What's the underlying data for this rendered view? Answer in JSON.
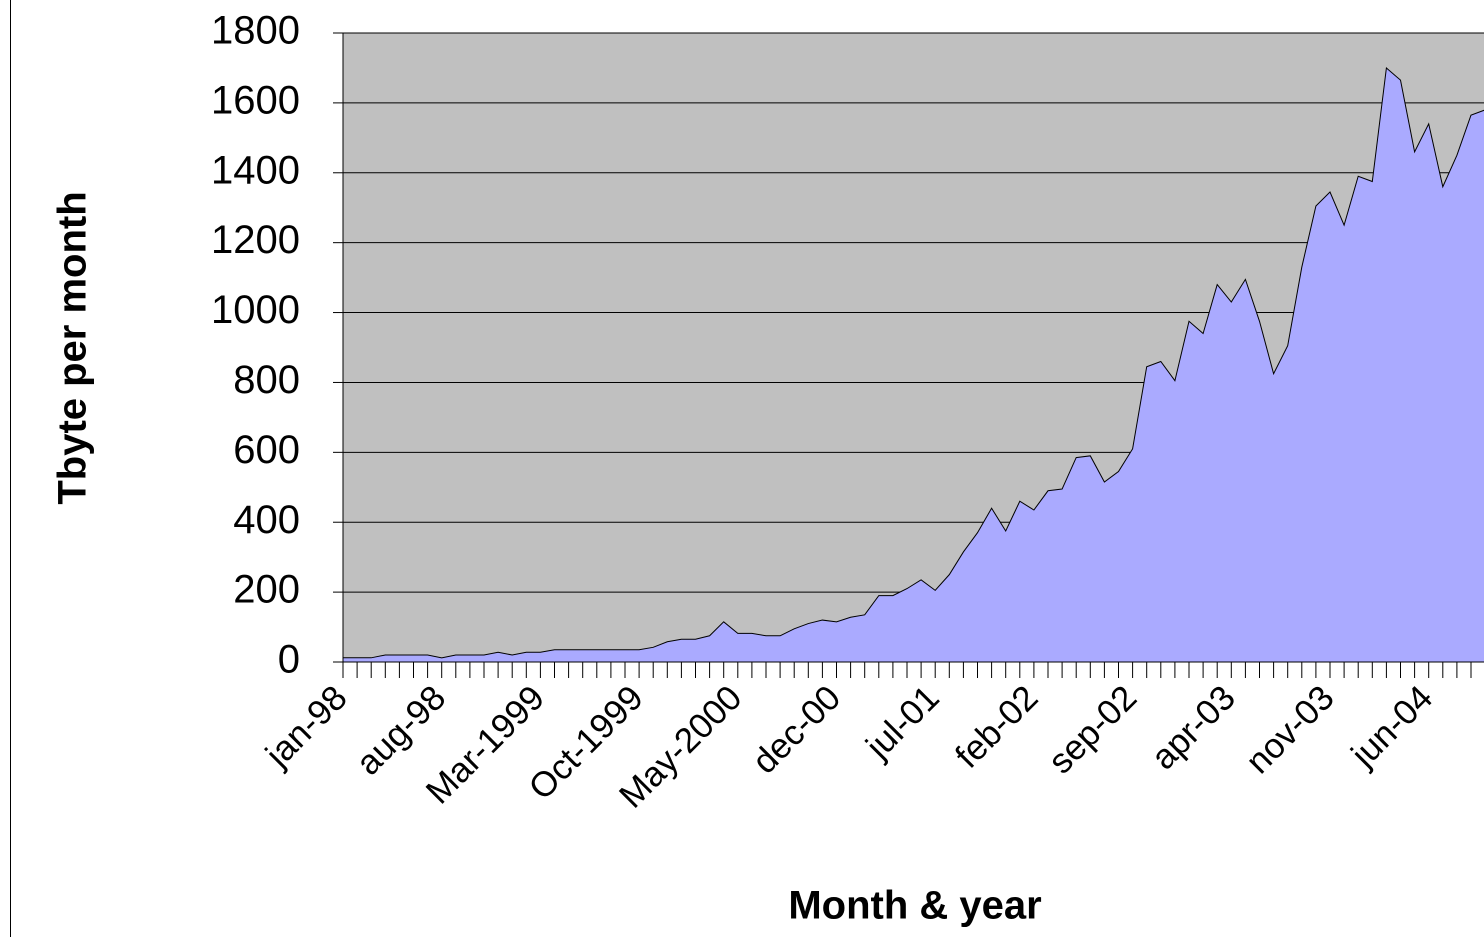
{
  "chart_data": {
    "type": "area",
    "x_label": "Month & year",
    "y_label": "Tbyte per month",
    "categories": [
      "jan-98",
      null,
      null,
      null,
      null,
      null,
      null,
      "aug-98",
      null,
      null,
      null,
      null,
      null,
      null,
      "Mar-1999",
      null,
      null,
      null,
      null,
      null,
      null,
      "Oct-1999",
      null,
      null,
      null,
      null,
      null,
      null,
      "May-2000",
      null,
      null,
      null,
      null,
      null,
      null,
      "dec-00",
      null,
      null,
      null,
      null,
      null,
      null,
      "jul-01",
      null,
      null,
      null,
      null,
      null,
      null,
      "feb-02",
      null,
      null,
      null,
      null,
      null,
      null,
      "sep-02",
      null,
      null,
      null,
      null,
      null,
      null,
      "apr-03",
      null,
      null,
      null,
      null,
      null,
      null,
      "nov-03",
      null,
      null,
      null,
      null,
      null,
      null,
      "jun-04",
      null,
      null,
      null,
      null
    ],
    "values": [
      12,
      12,
      12,
      20,
      20,
      20,
      20,
      12,
      20,
      20,
      20,
      28,
      20,
      28,
      28,
      35,
      35,
      35,
      35,
      35,
      35,
      35,
      42,
      58,
      65,
      65,
      75,
      115,
      82,
      82,
      75,
      75,
      95,
      110,
      120,
      115,
      128,
      135,
      190,
      190,
      210,
      235,
      205,
      250,
      315,
      370,
      440,
      375,
      460,
      435,
      490,
      495,
      585,
      590,
      515,
      545,
      610,
      845,
      860,
      805,
      975,
      940,
      1080,
      1030,
      1095,
      975,
      825,
      905,
      1130,
      1305,
      1345,
      1250,
      1390,
      1375,
      1700,
      1665,
      1460,
      1540,
      1360,
      1450,
      1565,
      1580
    ],
    "color": "#aaaaff",
    "background": "#c0c0c0",
    "ylim": [
      0,
      1800
    ],
    "yticks": [
      0,
      200,
      400,
      600,
      800,
      1000,
      1200,
      1400,
      1600,
      1800
    ],
    "grid": true
  }
}
